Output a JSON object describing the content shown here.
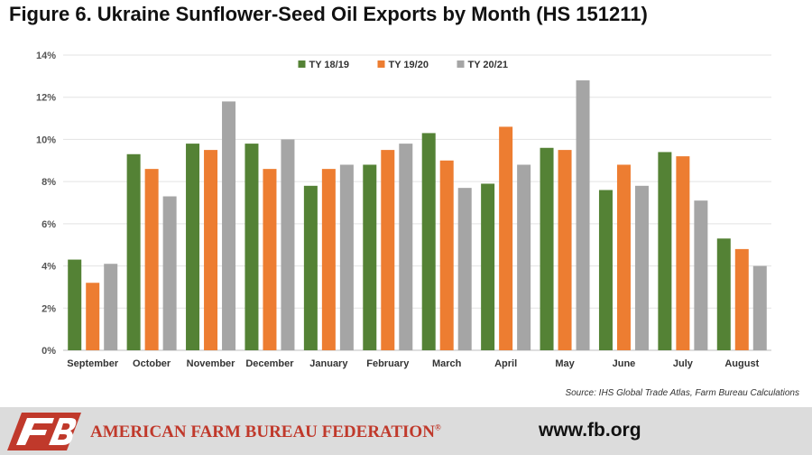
{
  "header": {
    "title": "Figure 6. Ukraine Sunflower-Seed Oil Exports by Month (HS 151211)"
  },
  "chart_data": {
    "type": "bar",
    "categories": [
      "September",
      "October",
      "November",
      "December",
      "January",
      "February",
      "March",
      "April",
      "May",
      "June",
      "July",
      "August"
    ],
    "series": [
      {
        "name": "TY 18/19",
        "color": "#548235",
        "values": [
          4.3,
          9.3,
          9.8,
          9.8,
          7.8,
          8.8,
          10.3,
          7.9,
          9.6,
          7.6,
          9.4,
          5.3
        ]
      },
      {
        "name": "TY 19/20",
        "color": "#ed7d31",
        "values": [
          3.2,
          8.6,
          9.5,
          8.6,
          8.6,
          9.5,
          9.0,
          10.6,
          9.5,
          8.8,
          9.2,
          4.8
        ]
      },
      {
        "name": "TY 20/21",
        "color": "#a5a5a5",
        "values": [
          4.1,
          7.3,
          11.8,
          10.0,
          8.8,
          9.8,
          7.7,
          8.8,
          12.8,
          7.8,
          7.1,
          4.0
        ]
      }
    ],
    "ylim": [
      0,
      14
    ],
    "yticks": [
      "0%",
      "2%",
      "4%",
      "6%",
      "8%",
      "10%",
      "12%",
      "14%"
    ],
    "grid": true,
    "legend": "top-center"
  },
  "source": "Source: IHS Global Trade Atlas, Farm Bureau Calculations",
  "footer": {
    "organization": "AMERICAN FARM BUREAU FEDERATION",
    "trademark": "®",
    "website": "www.fb.org",
    "org_color": "#c0392b",
    "logo_color": "#c0392b"
  }
}
